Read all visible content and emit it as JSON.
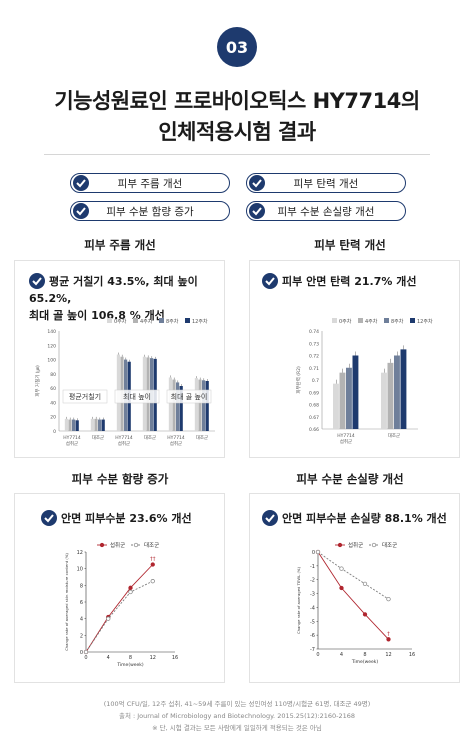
{
  "header": {
    "badge": "03",
    "title_line1": "기능성원료인 프로바이오틱스 HY7714의",
    "title_line2": "인체적용시험 결과"
  },
  "pills": [
    "피부 주름 개선",
    "피부 탄력 개선",
    "피부 수분 함량 증가",
    "피부 수분 손실량 개선"
  ],
  "sections": {
    "wrinkle": {
      "label": "피부 주름 개선",
      "card_title_1": "평균 거칠기 43.5%, 최대 높이 65.2%,",
      "card_title_2": "최대 골 높이 106.8 % 개선"
    },
    "elasticity": {
      "label": "피부 탄력 개선",
      "card_title": "피부 안면 탄력 21.7% 개선"
    },
    "hydration": {
      "label": "피부 수분 함량 증가",
      "card_title": "안면 피부수분 23.6% 개선"
    },
    "tewl": {
      "label": "피부 수분 손실량 개선",
      "card_title": "안면 피부수분 손실량 88.1% 개선"
    }
  },
  "footer": {
    "line1": "(100억 CFU/일, 12주 섭취, 41~59세 주름이 있는 성인여성 110명/시험군 61명, 대조군 49명)",
    "line2": "출처 : Journal of Microbiology and Biotechnology. 2015.25(12):2160-2168",
    "line3": "※ 단, 시험 결과는 모든 사람에게 일일하게 적용되는 것은 아님"
  },
  "colors": {
    "navy": "#1e3a6e",
    "week0": "#d9d9d9",
    "week4": "#b3b3b3",
    "week8": "#6f7f9a",
    "week12": "#1e3a6e",
    "treat": "#b0262f",
    "control": "#7f7f7f"
  },
  "chart_data": [
    {
      "type": "bar",
      "legend": [
        "0주차",
        "4주차",
        "8주차",
        "12주차"
      ],
      "legend_position": "top",
      "ylim": [
        0,
        140
      ],
      "yticks": [
        "0",
        "20",
        "40",
        "60",
        "80",
        "100",
        "120",
        "140"
      ],
      "ylabel": "피부 거칠기 (㎛)",
      "groups": [
        "평균거칠기",
        "최대 높이",
        "최대 골 높이"
      ],
      "categories": [
        "HY7714 섭취군",
        "대조군",
        "HY7714 섭취군",
        "대조군",
        "HY7714 섭취군",
        "대조군"
      ],
      "category_labels": [
        [
          "HY7714",
          "섭취군"
        ],
        [
          "대조군"
        ],
        [
          "HY7714",
          "섭취군"
        ],
        [
          "대조군"
        ],
        [
          "HY7714",
          "섭취군"
        ],
        [
          "대조군"
        ]
      ],
      "series": [
        {
          "name": "0주차",
          "values": [
            17,
            17,
            107,
            104,
            75,
            74
          ]
        },
        {
          "name": "4주차",
          "values": [
            16,
            17,
            104,
            103,
            72,
            72
          ]
        },
        {
          "name": "8주차",
          "values": [
            16,
            16,
            100,
            102,
            68,
            71
          ]
        },
        {
          "name": "12주차",
          "values": [
            15,
            16,
            97,
            101,
            63,
            70
          ]
        }
      ]
    },
    {
      "type": "bar",
      "legend": [
        "0주차",
        "4주차",
        "8주차",
        "12주차"
      ],
      "legend_position": "top",
      "ylim": [
        0.66,
        0.74
      ],
      "yticks": [
        "0.66",
        "0.67",
        "0.68",
        "0.69",
        "0.7",
        "0.71",
        "0.72",
        "0.73",
        "0.74"
      ],
      "ylabel": "피부탄력 (R2)",
      "categories": [
        "HY7714 섭취군",
        "대조군"
      ],
      "category_labels": [
        [
          "HY7714",
          "섭취군"
        ],
        [
          "대조군"
        ]
      ],
      "series": [
        {
          "name": "0주차",
          "values": [
            0.697,
            0.706
          ]
        },
        {
          "name": "4주차",
          "values": [
            0.706,
            0.714
          ]
        },
        {
          "name": "8주차",
          "values": [
            0.71,
            0.72
          ]
        },
        {
          "name": "12주차",
          "values": [
            0.72,
            0.725
          ]
        }
      ]
    },
    {
      "type": "line",
      "legend": [
        "섭취군",
        "대조군"
      ],
      "legend_position": "top-right",
      "xlabel": "Time(week)",
      "ylabel": "Change rate of averaged skin moisture content (%)",
      "xlim": [
        0,
        16
      ],
      "ylim": [
        0,
        12
      ],
      "xticks": [
        "0",
        "4",
        "8",
        "12",
        "16"
      ],
      "yticks": [
        "0",
        "2",
        "4",
        "6",
        "8",
        "10",
        "12"
      ],
      "annotation": "††",
      "x": [
        0,
        4,
        8,
        12
      ],
      "series": [
        {
          "name": "섭취군",
          "values": [
            0,
            4.2,
            7.7,
            10.5
          ]
        },
        {
          "name": "대조군",
          "values": [
            0,
            4.0,
            7.2,
            8.5
          ]
        }
      ]
    },
    {
      "type": "line",
      "legend": [
        "섭취군",
        "대조군"
      ],
      "legend_position": "top-right",
      "xlabel": "Time(week)",
      "ylabel": "Change rate of averaged TEWL (%)",
      "xlim": [
        0,
        16
      ],
      "ylim": [
        -7,
        0
      ],
      "xticks": [
        "0",
        "4",
        "8",
        "12",
        "16"
      ],
      "yticks": [
        "0",
        "-1",
        "-2",
        "-3",
        "-4",
        "-5",
        "-6",
        "-7"
      ],
      "annotation": "†",
      "x": [
        0,
        4,
        8,
        12
      ],
      "series": [
        {
          "name": "섭취군",
          "values": [
            0,
            -2.6,
            -4.5,
            -6.3
          ]
        },
        {
          "name": "대조군",
          "values": [
            0,
            -1.2,
            -2.3,
            -3.4
          ]
        }
      ]
    }
  ]
}
